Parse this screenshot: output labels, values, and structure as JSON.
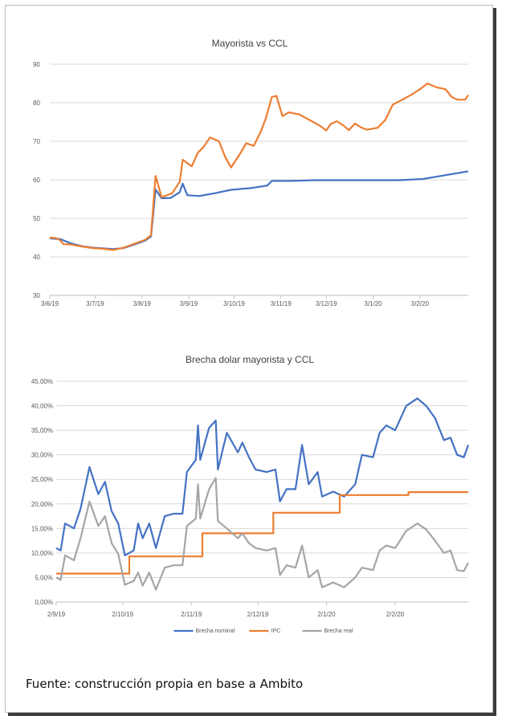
{
  "source_note": "Fuente: construcción propia en base a Ambito",
  "chart_data": [
    {
      "type": "line",
      "title": "Mayorista vs CCL",
      "xlabel": "",
      "ylabel": "",
      "ylim": [
        30,
        90
      ],
      "yticks": [
        "30",
        "40",
        "50",
        "60",
        "70",
        "80",
        "90"
      ],
      "xlim": [
        "2019-06-03",
        "2020-03-06"
      ],
      "xticks": [
        {
          "date": "2019-06-03",
          "label": "3/6/19"
        },
        {
          "date": "2019-07-03",
          "label": "3/7/19"
        },
        {
          "date": "2019-08-03",
          "label": "3/8/19"
        },
        {
          "date": "2019-09-03",
          "label": "3/9/19"
        },
        {
          "date": "2019-10-03",
          "label": "3/10/19"
        },
        {
          "date": "2019-11-03",
          "label": "3/11/19"
        },
        {
          "date": "2019-12-03",
          "label": "3/12/19"
        },
        {
          "date": "2020-01-03",
          "label": "3/1/20"
        },
        {
          "date": "2020-02-03",
          "label": "3/2/20"
        }
      ],
      "grid": true,
      "legend": "none",
      "series": [
        {
          "color": "#4472c4",
          "points": [
            [
              "2019-06-03",
              44.8
            ],
            [
              "2019-06-10",
              44.6
            ],
            [
              "2019-06-17",
              43.5
            ],
            [
              "2019-06-24",
              42.8
            ],
            [
              "2019-07-01",
              42.4
            ],
            [
              "2019-07-08",
              42.2
            ],
            [
              "2019-07-15",
              42.0
            ],
            [
              "2019-07-22",
              42.3
            ],
            [
              "2019-07-29",
              43.2
            ],
            [
              "2019-08-05",
              44.2
            ],
            [
              "2019-08-09",
              45.3
            ],
            [
              "2019-08-12",
              57.5
            ],
            [
              "2019-08-16",
              55.2
            ],
            [
              "2019-08-22",
              55.3
            ],
            [
              "2019-08-28",
              56.8
            ],
            [
              "2019-08-30",
              59.0
            ],
            [
              "2019-09-02",
              56.0
            ],
            [
              "2019-09-10",
              55.8
            ],
            [
              "2019-09-20",
              56.5
            ],
            [
              "2019-10-01",
              57.4
            ],
            [
              "2019-10-15",
              57.9
            ],
            [
              "2019-10-25",
              58.5
            ],
            [
              "2019-10-28",
              59.7
            ],
            [
              "2019-11-10",
              59.7
            ],
            [
              "2019-11-25",
              59.9
            ],
            [
              "2019-12-10",
              59.9
            ],
            [
              "2019-12-31",
              59.9
            ],
            [
              "2020-01-20",
              59.9
            ],
            [
              "2020-02-05",
              60.2
            ],
            [
              "2020-02-20",
              61.2
            ],
            [
              "2020-03-06",
              62.2
            ]
          ]
        },
        {
          "color": "#ed7d31",
          "points": [
            [
              "2019-06-03",
              45.0
            ],
            [
              "2019-06-07",
              44.9
            ],
            [
              "2019-06-10",
              44.3
            ],
            [
              "2019-06-12",
              43.3
            ],
            [
              "2019-06-17",
              43.2
            ],
            [
              "2019-06-24",
              42.7
            ],
            [
              "2019-07-01",
              42.3
            ],
            [
              "2019-07-08",
              42.1
            ],
            [
              "2019-07-15",
              41.8
            ],
            [
              "2019-07-22",
              42.4
            ],
            [
              "2019-07-29",
              43.4
            ],
            [
              "2019-08-05",
              44.4
            ],
            [
              "2019-08-09",
              45.6
            ],
            [
              "2019-08-12",
              61.0
            ],
            [
              "2019-08-16",
              55.5
            ],
            [
              "2019-08-23",
              56.5
            ],
            [
              "2019-08-28",
              59.5
            ],
            [
              "2019-08-30",
              65.2
            ],
            [
              "2019-09-05",
              63.5
            ],
            [
              "2019-09-09",
              67.0
            ],
            [
              "2019-09-13",
              68.6
            ],
            [
              "2019-09-17",
              71.0
            ],
            [
              "2019-09-23",
              70.0
            ],
            [
              "2019-09-27",
              66.0
            ],
            [
              "2019-10-01",
              63.2
            ],
            [
              "2019-10-07",
              66.8
            ],
            [
              "2019-10-11",
              69.5
            ],
            [
              "2019-10-16",
              68.8
            ],
            [
              "2019-10-21",
              72.8
            ],
            [
              "2019-10-24",
              76.0
            ],
            [
              "2019-10-28",
              81.5
            ],
            [
              "2019-10-31",
              81.8
            ],
            [
              "2019-11-04",
              76.5
            ],
            [
              "2019-11-08",
              77.5
            ],
            [
              "2019-11-15",
              77.0
            ],
            [
              "2019-11-22",
              75.5
            ],
            [
              "2019-11-29",
              74.0
            ],
            [
              "2019-12-03",
              72.8
            ],
            [
              "2019-12-06",
              74.5
            ],
            [
              "2019-12-10",
              75.2
            ],
            [
              "2019-12-14",
              74.2
            ],
            [
              "2019-12-18",
              72.9
            ],
            [
              "2019-12-22",
              74.6
            ],
            [
              "2019-12-26",
              73.6
            ],
            [
              "2019-12-30",
              73.0
            ],
            [
              "2020-01-06",
              73.5
            ],
            [
              "2020-01-11",
              75.5
            ],
            [
              "2020-01-16",
              79.5
            ],
            [
              "2020-01-22",
              80.7
            ],
            [
              "2020-01-28",
              82.0
            ],
            [
              "2020-02-03",
              83.5
            ],
            [
              "2020-02-08",
              85.0
            ],
            [
              "2020-02-14",
              84.0
            ],
            [
              "2020-02-20",
              83.5
            ],
            [
              "2020-02-24",
              81.5
            ],
            [
              "2020-02-28",
              80.8
            ],
            [
              "2020-03-04",
              80.8
            ],
            [
              "2020-03-06",
              82.0
            ]
          ]
        }
      ]
    },
    {
      "type": "line",
      "title": "Brecha dolar mayorista y CCL",
      "xlabel": "",
      "ylabel": "",
      "ylim": [
        0,
        45
      ],
      "yticks": [
        "0,00%",
        "5,00%",
        "10,00%",
        "15,00%",
        "20,00%",
        "25,00%",
        "30,00%",
        "35,00%",
        "40,00%",
        "45,00%"
      ],
      "xlim": [
        "2019-09-02",
        "2020-03-06"
      ],
      "xticks": [
        {
          "date": "2019-09-02",
          "label": "2/9/19"
        },
        {
          "date": "2019-10-02",
          "label": "2/10/19"
        },
        {
          "date": "2019-11-02",
          "label": "2/11/19"
        },
        {
          "date": "2019-12-02",
          "label": "2/12/19"
        },
        {
          "date": "2020-01-02",
          "label": "2/1/20"
        },
        {
          "date": "2020-02-02",
          "label": "2/2/20"
        }
      ],
      "grid": true,
      "legend": "bottom",
      "series": [
        {
          "name": "Brecha nominal",
          "color": "#4472c4",
          "points": [
            [
              "2019-09-02",
              11.0
            ],
            [
              "2019-09-04",
              10.5
            ],
            [
              "2019-09-06",
              16.0
            ],
            [
              "2019-09-10",
              15.0
            ],
            [
              "2019-09-13",
              19.0
            ],
            [
              "2019-09-17",
              27.5
            ],
            [
              "2019-09-21",
              22.0
            ],
            [
              "2019-09-24",
              24.5
            ],
            [
              "2019-09-27",
              18.5
            ],
            [
              "2019-09-30",
              16.0
            ],
            [
              "2019-10-03",
              9.5
            ],
            [
              "2019-10-07",
              10.5
            ],
            [
              "2019-10-09",
              16.0
            ],
            [
              "2019-10-11",
              13.0
            ],
            [
              "2019-10-14",
              16.0
            ],
            [
              "2019-10-17",
              11.0
            ],
            [
              "2019-10-21",
              17.5
            ],
            [
              "2019-10-25",
              18.0
            ],
            [
              "2019-10-29",
              18.0
            ],
            [
              "2019-10-31",
              26.5
            ],
            [
              "2019-11-04",
              29.0
            ],
            [
              "2019-11-05",
              36.0
            ],
            [
              "2019-11-06",
              29.0
            ],
            [
              "2019-11-10",
              35.5
            ],
            [
              "2019-11-13",
              37.0
            ],
            [
              "2019-11-14",
              27.0
            ],
            [
              "2019-11-18",
              34.5
            ],
            [
              "2019-11-23",
              30.5
            ],
            [
              "2019-11-25",
              32.5
            ],
            [
              "2019-11-28",
              29.5
            ],
            [
              "2019-12-01",
              27.0
            ],
            [
              "2019-12-06",
              26.5
            ],
            [
              "2019-12-10",
              27.0
            ],
            [
              "2019-12-12",
              20.5
            ],
            [
              "2019-12-15",
              23.0
            ],
            [
              "2019-12-19",
              23.0
            ],
            [
              "2019-12-22",
              32.0
            ],
            [
              "2019-12-25",
              24.0
            ],
            [
              "2019-12-29",
              26.5
            ],
            [
              "2019-12-31",
              21.5
            ],
            [
              "2020-01-05",
              22.5
            ],
            [
              "2020-01-10",
              21.5
            ],
            [
              "2020-01-15",
              24.0
            ],
            [
              "2020-01-18",
              30.0
            ],
            [
              "2020-01-23",
              29.5
            ],
            [
              "2020-01-26",
              34.5
            ],
            [
              "2020-01-29",
              36.0
            ],
            [
              "2020-02-02",
              35.0
            ],
            [
              "2020-02-07",
              40.0
            ],
            [
              "2020-02-12",
              41.5
            ],
            [
              "2020-02-16",
              40.0
            ],
            [
              "2020-02-20",
              37.5
            ],
            [
              "2020-02-24",
              33.0
            ],
            [
              "2020-02-27",
              33.5
            ],
            [
              "2020-03-01",
              30.0
            ],
            [
              "2020-03-04",
              29.5
            ],
            [
              "2020-03-06",
              32.0
            ]
          ]
        },
        {
          "name": "IPC",
          "color": "#ed7d31",
          "points": [
            [
              "2019-09-02",
              5.8
            ],
            [
              "2019-10-05",
              5.8
            ],
            [
              "2019-10-05",
              9.3
            ],
            [
              "2019-11-07",
              9.3
            ],
            [
              "2019-11-07",
              14.0
            ],
            [
              "2019-12-09",
              14.0
            ],
            [
              "2019-12-09",
              18.2
            ],
            [
              "2020-01-08",
              18.2
            ],
            [
              "2020-01-08",
              21.8
            ],
            [
              "2020-02-08",
              21.8
            ],
            [
              "2020-02-08",
              22.4
            ],
            [
              "2020-03-06",
              22.4
            ]
          ]
        },
        {
          "name": "Brecha real",
          "color": "#a5a5a5",
          "points": [
            [
              "2019-09-02",
              5.0
            ],
            [
              "2019-09-04",
              4.5
            ],
            [
              "2019-09-06",
              9.5
            ],
            [
              "2019-09-10",
              8.5
            ],
            [
              "2019-09-13",
              13.0
            ],
            [
              "2019-09-17",
              20.5
            ],
            [
              "2019-09-21",
              15.5
            ],
            [
              "2019-09-24",
              17.5
            ],
            [
              "2019-09-27",
              12.0
            ],
            [
              "2019-09-30",
              9.8
            ],
            [
              "2019-10-03",
              3.5
            ],
            [
              "2019-10-07",
              4.3
            ],
            [
              "2019-10-09",
              6.0
            ],
            [
              "2019-10-11",
              3.3
            ],
            [
              "2019-10-14",
              6.0
            ],
            [
              "2019-10-17",
              2.5
            ],
            [
              "2019-10-21",
              7.0
            ],
            [
              "2019-10-25",
              7.5
            ],
            [
              "2019-10-29",
              7.5
            ],
            [
              "2019-10-31",
              15.5
            ],
            [
              "2019-11-04",
              17.0
            ],
            [
              "2019-11-05",
              24.0
            ],
            [
              "2019-11-06",
              17.0
            ],
            [
              "2019-11-10",
              23.0
            ],
            [
              "2019-11-13",
              25.3
            ],
            [
              "2019-11-14",
              16.5
            ],
            [
              "2019-11-18",
              15.0
            ],
            [
              "2019-11-23",
              13.0
            ],
            [
              "2019-11-25",
              14.0
            ],
            [
              "2019-11-28",
              12.0
            ],
            [
              "2019-12-01",
              11.0
            ],
            [
              "2019-12-06",
              10.5
            ],
            [
              "2019-12-10",
              11.0
            ],
            [
              "2019-12-12",
              5.5
            ],
            [
              "2019-12-15",
              7.5
            ],
            [
              "2019-12-19",
              7.0
            ],
            [
              "2019-12-22",
              11.5
            ],
            [
              "2019-12-25",
              5.0
            ],
            [
              "2019-12-29",
              6.5
            ],
            [
              "2019-12-31",
              3.0
            ],
            [
              "2020-01-05",
              4.0
            ],
            [
              "2020-01-10",
              3.0
            ],
            [
              "2020-01-15",
              5.0
            ],
            [
              "2020-01-18",
              7.0
            ],
            [
              "2020-01-23",
              6.5
            ],
            [
              "2020-01-26",
              10.5
            ],
            [
              "2020-01-29",
              11.5
            ],
            [
              "2020-02-02",
              11.0
            ],
            [
              "2020-02-07",
              14.5
            ],
            [
              "2020-02-12",
              16.0
            ],
            [
              "2020-02-16",
              14.8
            ],
            [
              "2020-02-20",
              12.5
            ],
            [
              "2020-02-24",
              10.0
            ],
            [
              "2020-02-27",
              10.5
            ],
            [
              "2020-03-01",
              6.5
            ],
            [
              "2020-03-04",
              6.3
            ],
            [
              "2020-03-06",
              8.0
            ]
          ]
        }
      ]
    }
  ]
}
